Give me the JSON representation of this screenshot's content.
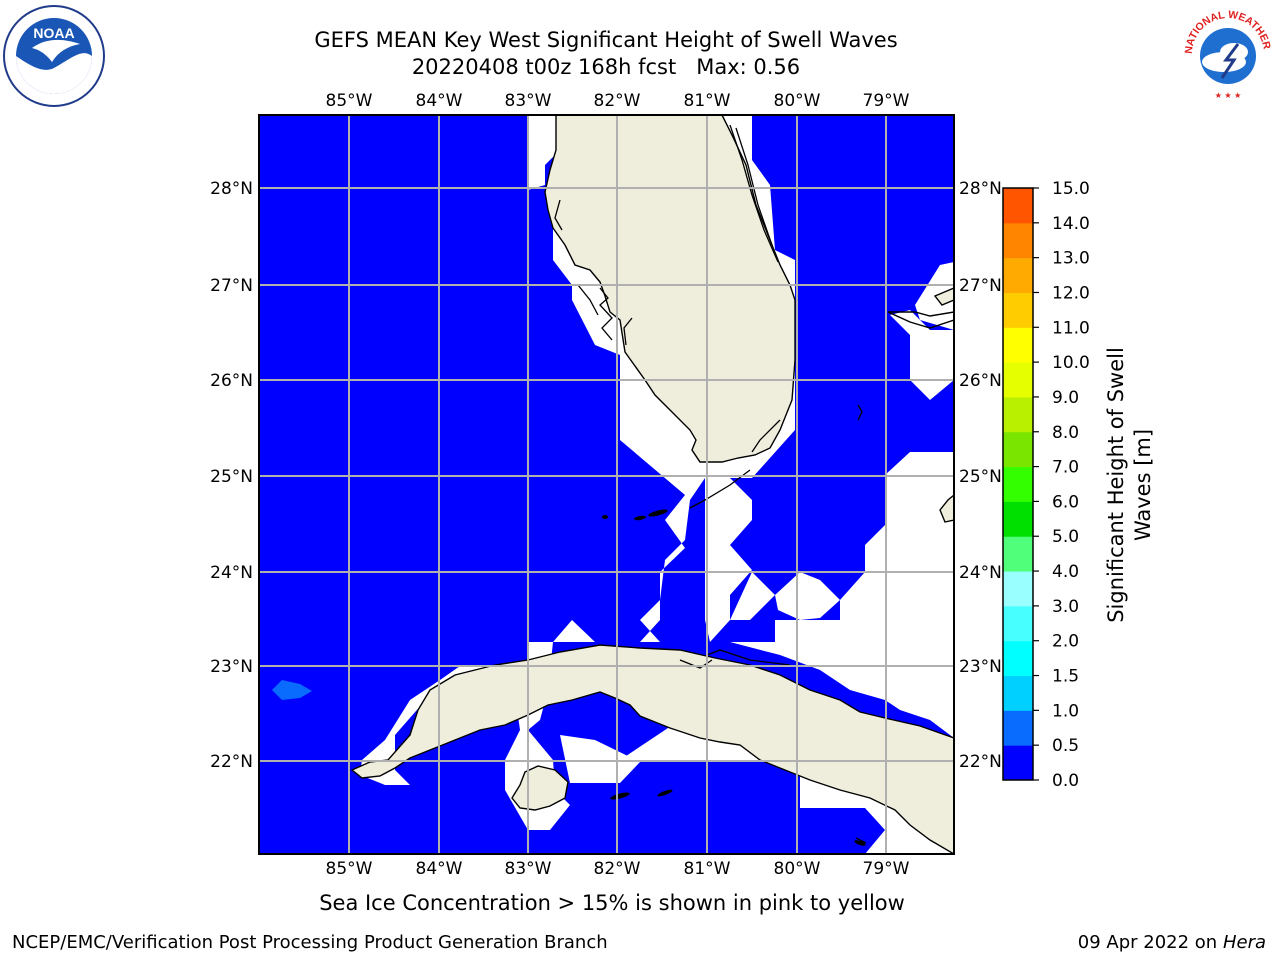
{
  "header": {
    "title_line1": "GEFS MEAN Key West Significant Height of Swell Waves",
    "title_line2": "20220408 t00z 168h fcst   Max: 0.56"
  },
  "map": {
    "lon_labels": [
      "85°W",
      "84°W",
      "83°W",
      "82°W",
      "81°W",
      "80°W",
      "79°W"
    ],
    "lat_labels": [
      "28°N",
      "27°N",
      "26°N",
      "25°N",
      "24°N",
      "23°N",
      "22°N"
    ],
    "ocean_color": "#0000ff",
    "land_color": "#efeedd",
    "mask_color": "#ffffff",
    "grid_color": "#b0b0b0"
  },
  "colorbar": {
    "title_line1": "Significant Height of Swell",
    "title_line2": "Waves [m]",
    "tick_labels": [
      "0.0",
      "0.5",
      "1.0",
      "1.5",
      "2.0",
      "3.0",
      "4.0",
      "5.0",
      "6.0",
      "7.0",
      "8.0",
      "9.0",
      "10.0",
      "11.0",
      "12.0",
      "13.0",
      "14.0",
      "15.0"
    ],
    "colors": [
      "#0000ff",
      "#0a6cff",
      "#00d0ff",
      "#00ffff",
      "#48ffff",
      "#99ffff",
      "#50ff7a",
      "#00e000",
      "#33ff00",
      "#7ae600",
      "#b8f000",
      "#e6ff00",
      "#ffff00",
      "#ffcc00",
      "#ffaa00",
      "#ff8400",
      "#ff5500",
      "#ff2800",
      "#ff0000"
    ]
  },
  "note": "Sea Ice Concentration > 15% is shown in pink to yellow",
  "footer": {
    "left": "NCEP/EMC/Verification Post Processing Product Generation Branch",
    "right_date": "09 Apr 2022 on ",
    "right_host": "Hera"
  },
  "logos": {
    "noaa_text": "NOAA",
    "nws_text": "NATIONAL WEATHER SERVICE"
  }
}
